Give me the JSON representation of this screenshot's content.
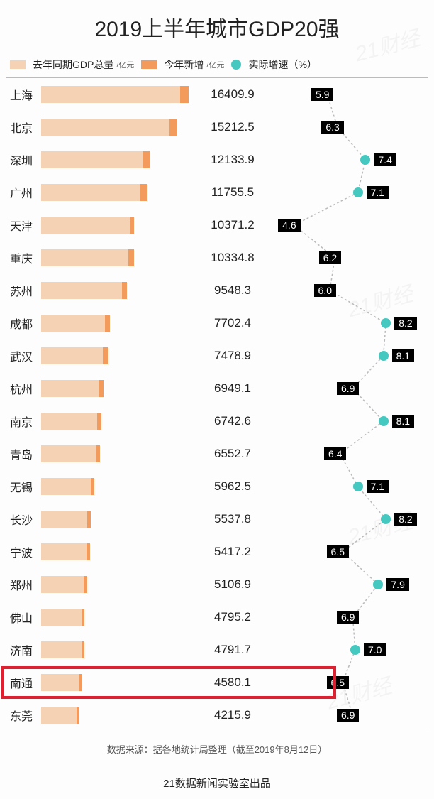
{
  "title": "2019上半年城市GDP20强",
  "title_fontsize": 30,
  "legend": {
    "base": {
      "label": "去年同期GDP总量",
      "unit": "/亿元",
      "color": "#f6d2b5"
    },
    "added": {
      "label": "今年新增",
      "unit": "/亿元",
      "color": "#f29b5c"
    },
    "rate": {
      "label": "实际增速（%）",
      "color": "#45c8c0"
    }
  },
  "axis": {
    "bar_max": 17000,
    "growth_min": 4.0,
    "growth_max": 9.0
  },
  "colors": {
    "background": "#fdfdfd",
    "text": "#222222",
    "badge_bg": "#000000",
    "badge_text": "#ffffff",
    "highlight_border": "#e02030",
    "divider": "#888888",
    "connector": "#bbbbbb"
  },
  "rows": [
    {
      "city": "上海",
      "total": 16409.9,
      "growth": 5.9,
      "badge_side": "left"
    },
    {
      "city": "北京",
      "total": 15212.5,
      "growth": 6.3,
      "badge_side": "left"
    },
    {
      "city": "深圳",
      "total": 12133.9,
      "growth": 7.4,
      "badge_side": "right"
    },
    {
      "city": "广州",
      "total": 11755.5,
      "growth": 7.1,
      "badge_side": "right"
    },
    {
      "city": "天津",
      "total": 10371.2,
      "growth": 4.6,
      "badge_side": "left"
    },
    {
      "city": "重庆",
      "total": 10334.8,
      "growth": 6.2,
      "badge_side": "left"
    },
    {
      "city": "苏州",
      "total": 9548.3,
      "growth": 6.0,
      "badge_side": "left"
    },
    {
      "city": "成都",
      "total": 7702.4,
      "growth": 8.2,
      "badge_side": "right"
    },
    {
      "city": "武汉",
      "total": 7478.9,
      "growth": 8.1,
      "badge_side": "right"
    },
    {
      "city": "杭州",
      "total": 6949.1,
      "growth": 6.9,
      "badge_side": "left"
    },
    {
      "city": "南京",
      "total": 6742.6,
      "growth": 8.1,
      "badge_side": "right"
    },
    {
      "city": "青岛",
      "total": 6552.7,
      "growth": 6.4,
      "badge_side": "left"
    },
    {
      "city": "无锡",
      "total": 5962.5,
      "growth": 7.1,
      "badge_side": "right"
    },
    {
      "city": "长沙",
      "total": 5537.8,
      "growth": 8.2,
      "badge_side": "right"
    },
    {
      "city": "宁波",
      "total": 5417.2,
      "growth": 6.5,
      "badge_side": "left"
    },
    {
      "city": "郑州",
      "total": 5106.9,
      "growth": 7.9,
      "badge_side": "right"
    },
    {
      "city": "佛山",
      "total": 4795.2,
      "growth": 6.9,
      "badge_side": "left"
    },
    {
      "city": "济南",
      "total": 4791.7,
      "growth": 7.0,
      "badge_side": "right"
    },
    {
      "city": "南通",
      "total": 4580.1,
      "growth": 6.5,
      "badge_side": "left",
      "highlight": true
    },
    {
      "city": "东莞",
      "total": 4215.9,
      "growth": 6.9,
      "badge_side": "left"
    }
  ],
  "source": "数据来源：据各地统计局整理（截至2019年8月12日）",
  "producer": "21数据新闻实验室出品",
  "watermark": "21财经"
}
